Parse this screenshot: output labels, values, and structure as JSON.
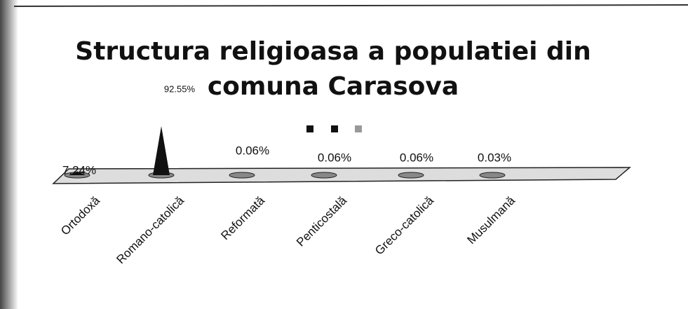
{
  "chart_data": {
    "type": "cone",
    "title": "Structura religioasa a populatiei din comuna Carasova",
    "categories": [
      "Ortodoxă",
      "Romano-catolică",
      "Reformată",
      "Penticostală",
      "Greco-catolică",
      "Musulmană"
    ],
    "values": [
      7.24,
      92.55,
      0.06,
      0.06,
      0.06,
      0.03
    ],
    "value_labels": [
      "7.24%",
      "92.55%",
      "0.06%",
      "0.06%",
      "0.06%",
      "0.03%"
    ],
    "color": "#111111"
  }
}
